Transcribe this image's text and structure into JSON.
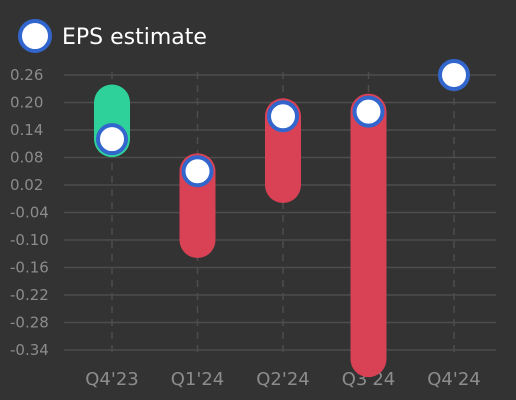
{
  "chart_data": {
    "type": "line",
    "legend": {
      "position": "top-left",
      "entries": [
        {
          "label": "EPS estimate"
        }
      ]
    },
    "categories": [
      "Q4'23",
      "Q1'24",
      "Q2'24",
      "Q3'24",
      "Q4'24"
    ],
    "y_ticks": [
      "0.26",
      "0.20",
      "0.14",
      "0.08",
      "0.02",
      "-0.04",
      "-0.10",
      "-0.16",
      "-0.22",
      "-0.28",
      "-0.34"
    ],
    "ylim": [
      -0.37,
      0.27
    ],
    "grid": {
      "horizontal": true,
      "vertical_dashed": true
    },
    "estimates": [
      0.12,
      0.05,
      0.17,
      0.18,
      0.26
    ],
    "actuals": [
      0.2,
      -0.1,
      0.02,
      -0.36,
      null
    ],
    "colors": {
      "background": "#333333",
      "grid": "#4d4d4d",
      "tick_text": "#8c8c8c",
      "legend_text": "#ffffff",
      "beat": "#2fd19b",
      "miss": "#d94155",
      "marker_fill": "#ffffff",
      "marker_stroke": "#3366cc"
    }
  }
}
